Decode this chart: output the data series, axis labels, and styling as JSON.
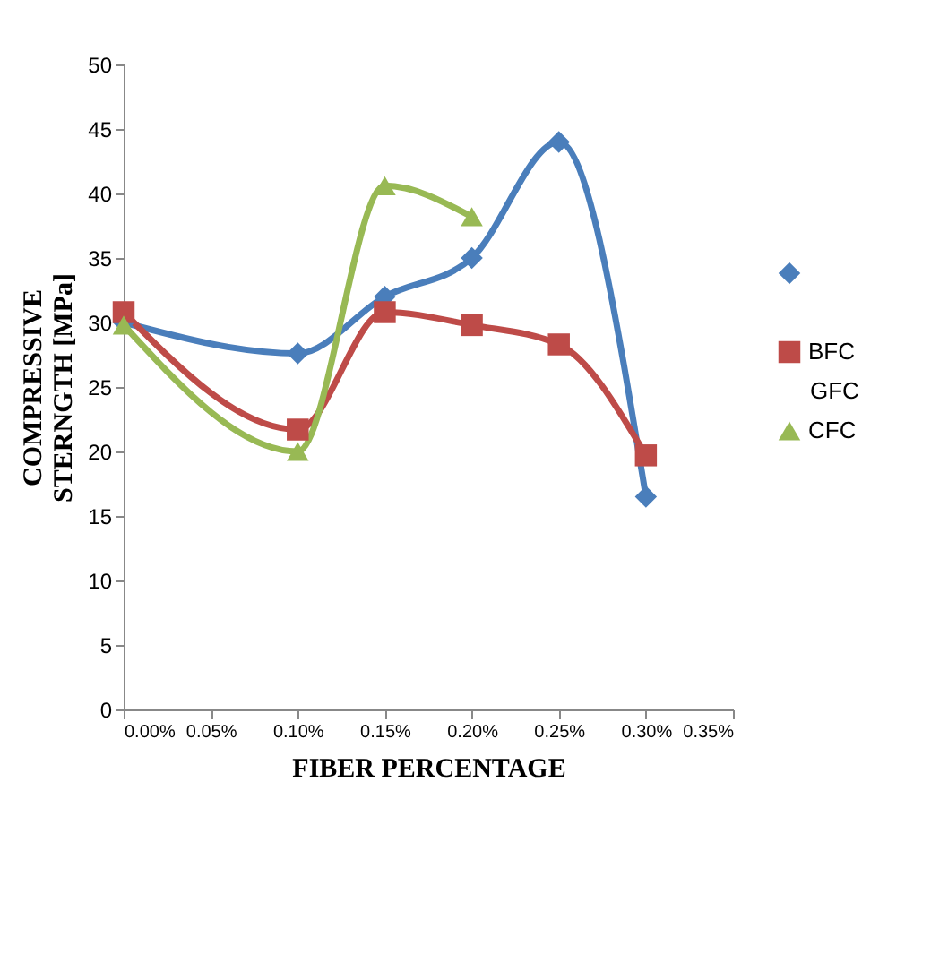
{
  "chart_data": {
    "type": "line",
    "xlabel": "FIBER PERCENTAGE",
    "ylabel": "COMPRESSIVE STERNGTH [MPa]",
    "x": [
      0,
      0.05,
      0.1,
      0.15,
      0.2,
      0.25,
      0.3
    ],
    "series": [
      {
        "color": "#4a7ebb",
        "marker": "diamond",
        "values": [
          30,
          null,
          27.6,
          32,
          35,
          44,
          16.5
        ]
      },
      {
        "name": "BFC",
        "color": "#be4b48",
        "marker": "square",
        "values": [
          30.8,
          null,
          21.7,
          30.8,
          29.8,
          28.3,
          19.7
        ]
      },
      {
        "name": "CFC",
        "color": "#98b954",
        "marker": "triangle",
        "values": [
          29.8,
          null,
          20,
          40.6,
          38.2,
          null,
          null
        ]
      }
    ],
    "annotations": [
      "GFC"
    ],
    "xlim": [
      0,
      0.35
    ],
    "ylim": [
      0,
      50
    ],
    "xticks": [
      {
        "value": 0,
        "label": "0.00%"
      },
      {
        "value": 0.05,
        "label": "0.05%"
      },
      {
        "value": 0.1,
        "label": "0.10%"
      },
      {
        "value": 0.15,
        "label": "0.15%"
      },
      {
        "value": 0.2,
        "label": "0.20%"
      },
      {
        "value": 0.25,
        "label": "0.25%"
      },
      {
        "value": 0.3,
        "label": "0.30%"
      },
      {
        "value": 0.35,
        "label": "0.35%"
      }
    ],
    "yticks": [
      0,
      5,
      10,
      15,
      20,
      25,
      30,
      35,
      40,
      45,
      50
    ],
    "grid": false,
    "legend": "right",
    "line_style": "solid"
  }
}
